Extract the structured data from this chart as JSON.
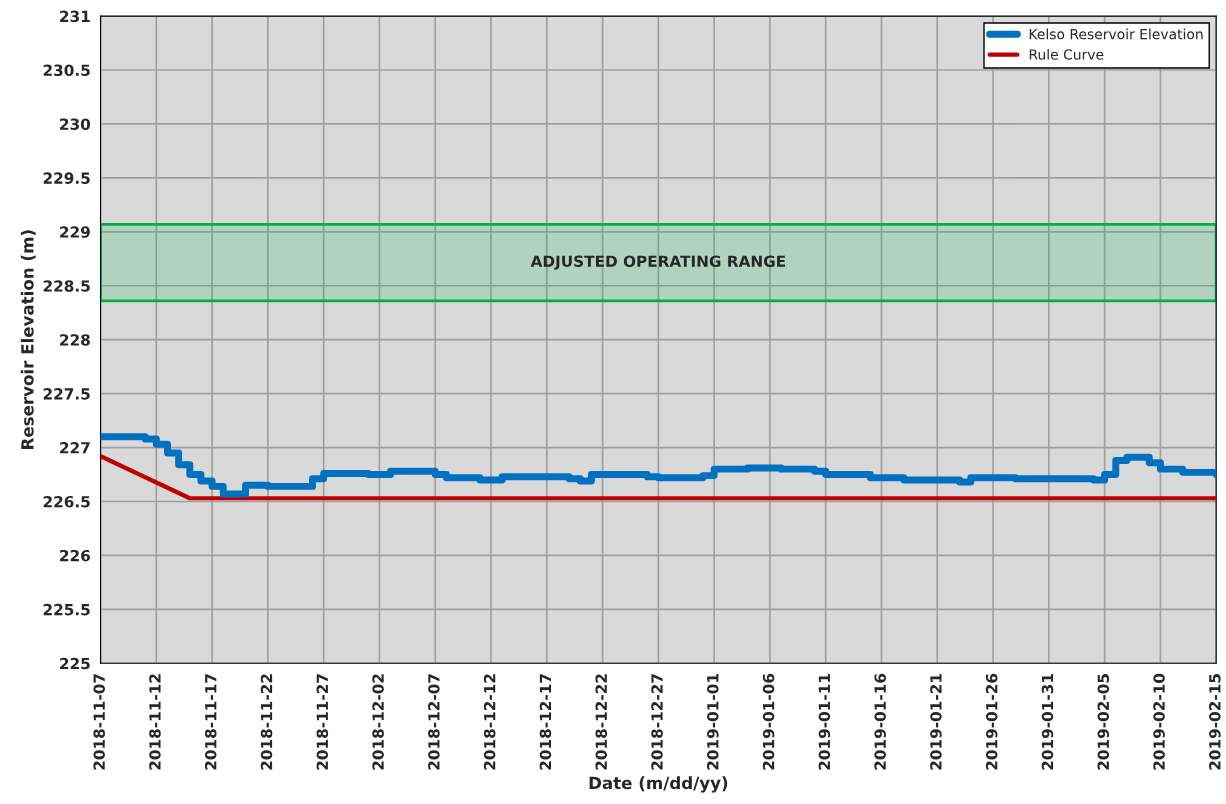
{
  "chart_data": {
    "type": "step",
    "xlabel": "Date (m/dd/yy)",
    "ylabel": "Reservoir Elevation (m)",
    "series": [
      {
        "name": "Kelso Reservoir Elevation",
        "color": "#0070c0",
        "x": [
          "2018-11-07",
          "2018-11-11",
          "2018-11-12",
          "2018-11-13",
          "2018-11-14",
          "2018-11-15",
          "2018-11-16",
          "2018-11-17",
          "2018-11-18",
          "2018-11-20",
          "2018-11-22",
          "2018-11-26",
          "2018-11-27",
          "2018-12-01",
          "2018-12-03",
          "2018-12-07",
          "2018-12-08",
          "2018-12-11",
          "2018-12-13",
          "2018-12-17",
          "2018-12-19",
          "2018-12-20",
          "2018-12-21",
          "2018-12-26",
          "2018-12-27",
          "2018-12-31",
          "2019-01-01",
          "2019-01-04",
          "2019-01-07",
          "2019-01-10",
          "2019-01-11",
          "2019-01-15",
          "2019-01-18",
          "2019-01-23",
          "2019-01-24",
          "2019-01-28",
          "2019-02-04",
          "2019-02-05",
          "2019-02-06",
          "2019-02-07",
          "2019-02-09",
          "2019-02-10",
          "2019-02-12",
          "2019-02-15"
        ],
        "values": [
          227.1,
          227.08,
          227.03,
          226.95,
          226.84,
          226.75,
          226.69,
          226.64,
          226.57,
          226.65,
          226.64,
          226.71,
          226.76,
          226.75,
          226.78,
          226.75,
          226.72,
          226.7,
          226.73,
          226.73,
          226.71,
          226.69,
          226.75,
          226.73,
          226.72,
          226.74,
          226.8,
          226.81,
          226.8,
          226.78,
          226.75,
          226.72,
          226.7,
          226.68,
          226.72,
          226.71,
          226.7,
          226.75,
          226.88,
          226.91,
          226.86,
          226.8,
          226.77,
          226.75
        ]
      },
      {
        "name": "Rule Curve",
        "color": "#c00000",
        "type": "line",
        "x": [
          "2018-11-07",
          "2018-11-15",
          "2019-02-15"
        ],
        "values": [
          226.92,
          226.53,
          226.53
        ]
      }
    ],
    "bands": [
      {
        "axis": "y",
        "from": 228.36,
        "to": 229.07,
        "label": "ADJUSTED OPERATING RANGE",
        "color": "#00b050"
      }
    ],
    "xlim": [
      "2018-11-07",
      "2019-02-15"
    ],
    "xticks": [
      "2018-11-07",
      "2018-11-12",
      "2018-11-17",
      "2018-11-22",
      "2018-11-27",
      "2018-12-02",
      "2018-12-07",
      "2018-12-12",
      "2018-12-17",
      "2018-12-22",
      "2018-12-27",
      "2019-01-01",
      "2019-01-06",
      "2019-01-11",
      "2019-01-16",
      "2019-01-21",
      "2019-01-26",
      "2019-01-31",
      "2019-02-05",
      "2019-02-10",
      "2019-02-15"
    ],
    "ylim": [
      225,
      231
    ],
    "yticks": [
      225,
      225.5,
      226,
      226.5,
      227,
      227.5,
      228,
      228.5,
      229,
      229.5,
      230,
      230.5,
      231
    ],
    "grid": true,
    "legend": "top right"
  }
}
